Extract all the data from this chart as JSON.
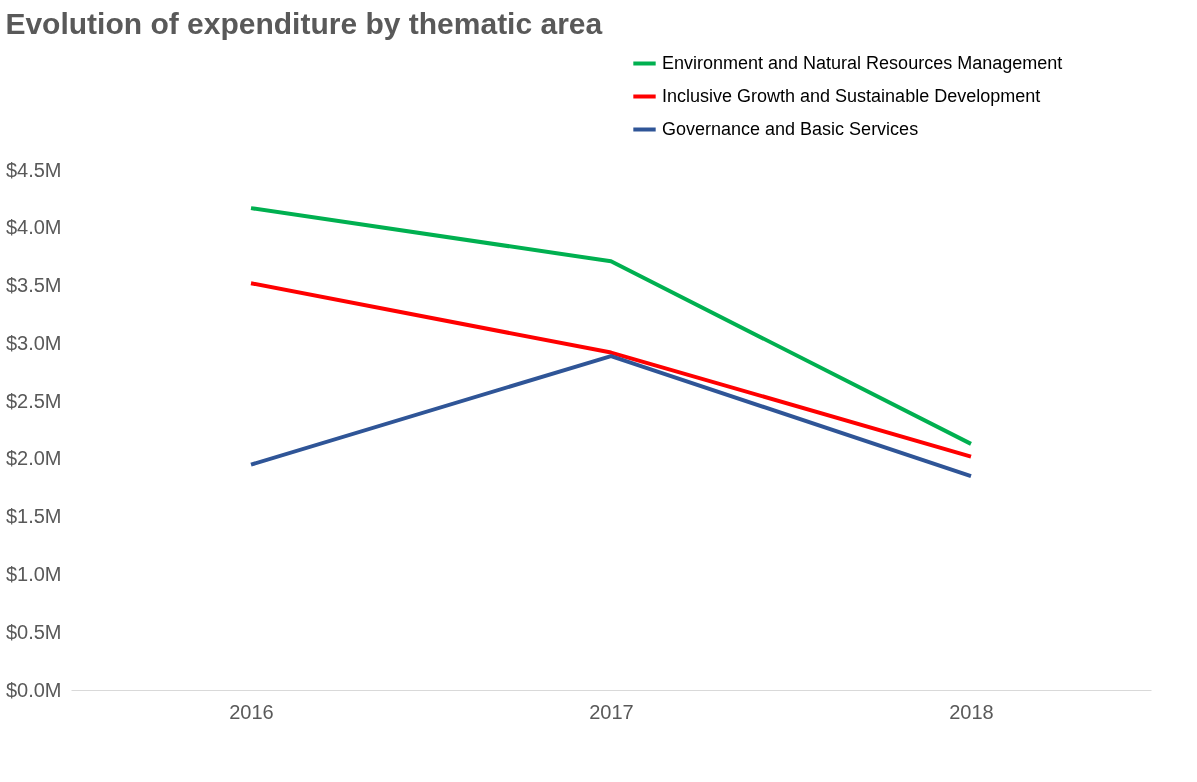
{
  "chart_data": {
    "type": "line",
    "title": "Evolution of expenditure by thematic area",
    "categories": [
      "2016",
      "2017",
      "2018"
    ],
    "series": [
      {
        "name": "Environment and Natural Resources Management",
        "color": "#00b050",
        "values": [
          4.17,
          3.71,
          2.13
        ]
      },
      {
        "name": "Inclusive Growth and Sustainable Development",
        "color": "#ff0000",
        "values": [
          3.52,
          2.92,
          2.02
        ]
      },
      {
        "name": "Governance and Basic Services",
        "color": "#2f5597",
        "values": [
          1.95,
          2.89,
          1.85
        ]
      }
    ],
    "ylim": [
      0,
      4.5
    ],
    "yticks": [
      {
        "value": 0,
        "label": "$0.0M"
      },
      {
        "value": 0.5,
        "label": "$0.5M"
      },
      {
        "value": 1,
        "label": "$1.0M"
      },
      {
        "value": 1.5,
        "label": "$1.5M"
      },
      {
        "value": 2,
        "label": "$2.0M"
      },
      {
        "value": 2.5,
        "label": "$2.5M"
      },
      {
        "value": 3,
        "label": "$3.0M"
      },
      {
        "value": 3.5,
        "label": "$3.5M"
      },
      {
        "value": 4,
        "label": "$4.0M"
      },
      {
        "value": 4.5,
        "label": "$4.5M"
      }
    ],
    "grid": false,
    "legend": "top right",
    "marker": "none",
    "line_style": "solid"
  }
}
